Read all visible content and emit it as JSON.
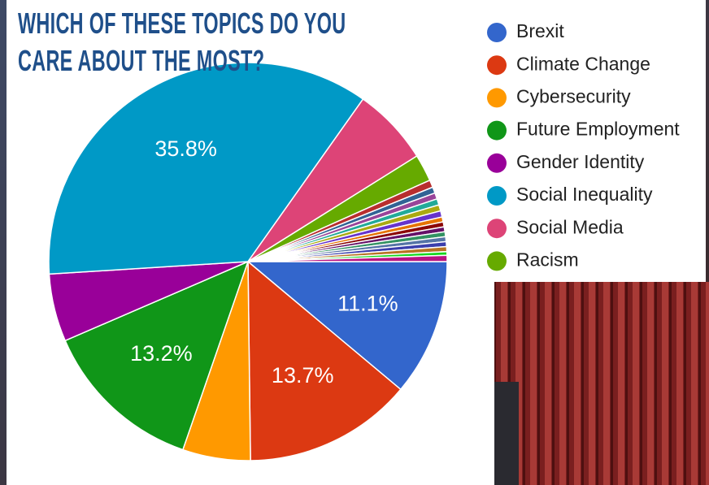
{
  "chart_data": {
    "type": "pie",
    "title": "WHICH OF THESE TOPICS DO YOU CARE ABOUT THE MOST?",
    "categories": [
      "Brexit",
      "Climate Change",
      "Cybersecurity",
      "Future Employment",
      "Gender Identity",
      "Social Inequality",
      "Social Media",
      "Racism",
      null,
      null,
      null,
      null,
      null,
      null,
      null,
      null,
      null,
      null,
      null,
      null,
      null,
      null,
      null
    ],
    "values": [
      11.1,
      13.7,
      5.5,
      13.2,
      5.5,
      35.8,
      6.3,
      2.2,
      0.6,
      0.5,
      0.5,
      0.5,
      0.5,
      0.5,
      0.4,
      0.4,
      0.4,
      0.4,
      0.4,
      0.4,
      0.4,
      0.3,
      0.5
    ],
    "value_labels": [
      "11.1%",
      "13.7%",
      null,
      "13.2%",
      null,
      "35.8%",
      null,
      null,
      null,
      null,
      null,
      null,
      null,
      null,
      null,
      null,
      null,
      null,
      null,
      null,
      null,
      null,
      null
    ],
    "colors": [
      "#3366cc",
      "#dc3912",
      "#ff9900",
      "#109618",
      "#990099",
      "#0099c6",
      "#dd4477",
      "#66aa00",
      "#b82e2e",
      "#316395",
      "#994499",
      "#22aa99",
      "#aaaa11",
      "#6633cc",
      "#e67300",
      "#8b0707",
      "#651067",
      "#329262",
      "#5574a6",
      "#3b3eac",
      "#b77322",
      "#16d620",
      "#b91383"
    ],
    "legend": "right"
  }
}
